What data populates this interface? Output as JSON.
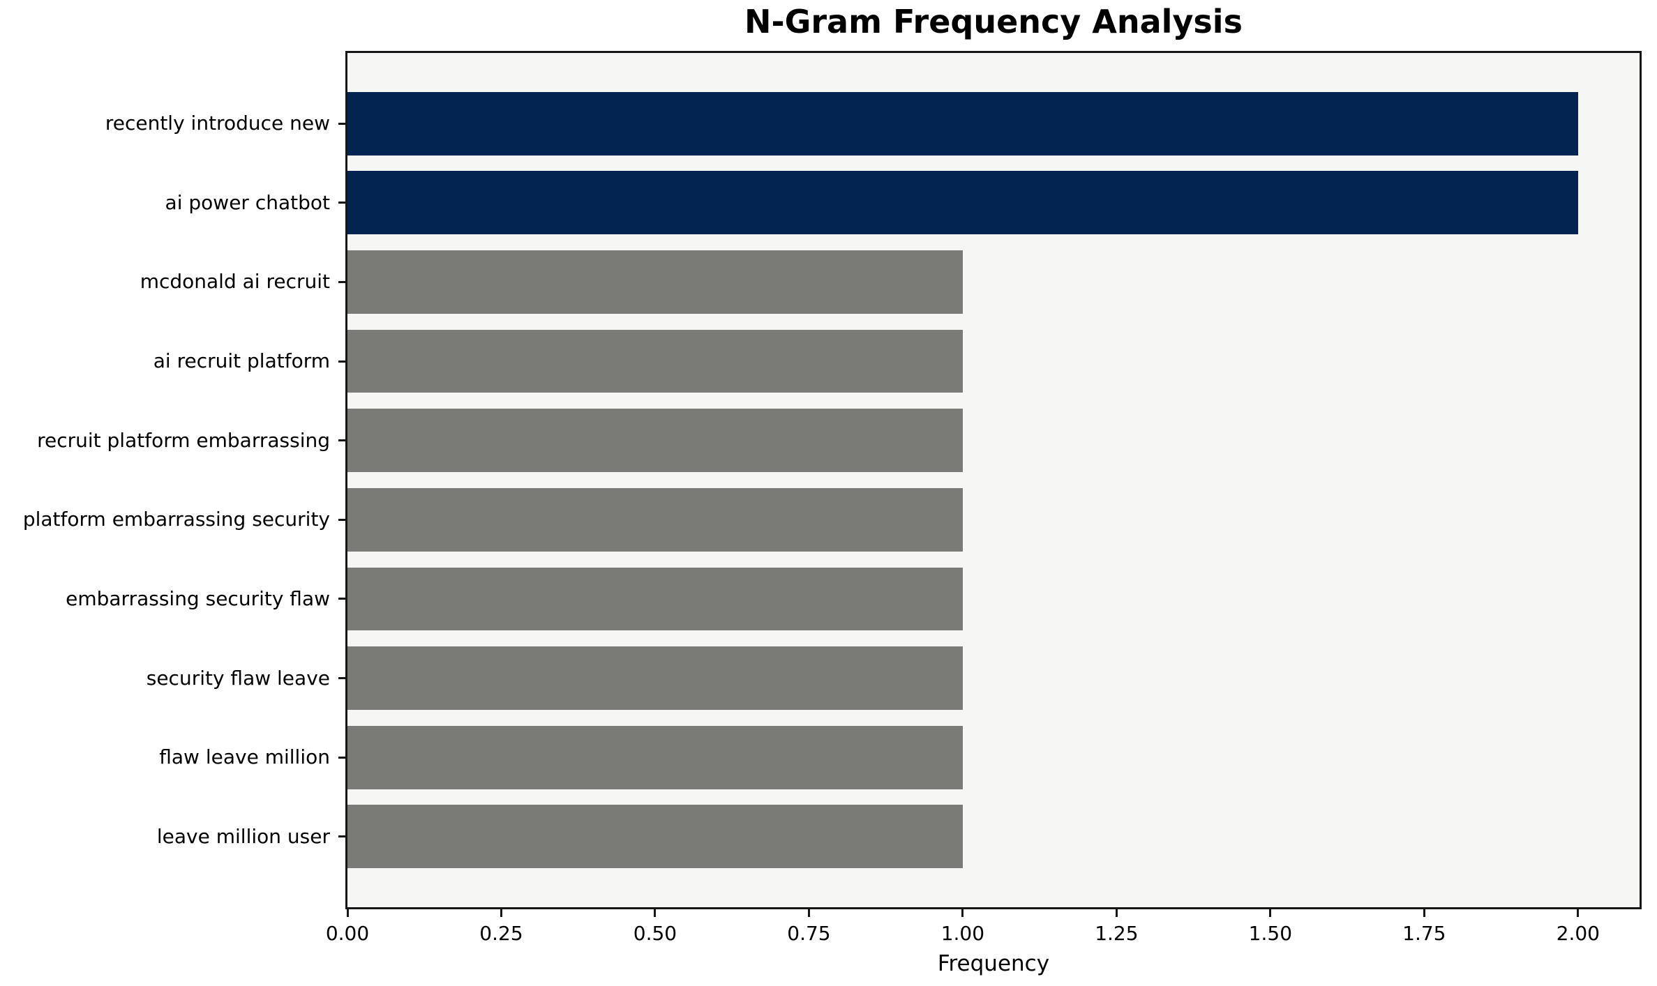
{
  "chart_data": {
    "type": "bar",
    "orientation": "horizontal",
    "title": "N-Gram Frequency Analysis",
    "xlabel": "Frequency",
    "ylabel": "",
    "categories": [
      "recently introduce new",
      "ai power chatbot",
      "mcdonald ai recruit",
      "ai recruit platform",
      "recruit platform embarrassing",
      "platform embarrassing security",
      "embarrassing security flaw",
      "security flaw leave",
      "flaw leave million",
      "leave million user"
    ],
    "values": [
      2,
      2,
      1,
      1,
      1,
      1,
      1,
      1,
      1,
      1
    ],
    "bar_colors": [
      "#032350",
      "#032350",
      "#7a7a76",
      "#7a7a76",
      "#7a7a76",
      "#7a7a76",
      "#7a7a76",
      "#7a7a76",
      "#7a7a76",
      "#7a7a76"
    ],
    "xlim": [
      0,
      2.1
    ],
    "x_ticks": [
      {
        "value": 0.0,
        "label": "0.00"
      },
      {
        "value": 0.25,
        "label": "0.25"
      },
      {
        "value": 0.5,
        "label": "0.50"
      },
      {
        "value": 0.75,
        "label": "0.75"
      },
      {
        "value": 1.0,
        "label": "1.00"
      },
      {
        "value": 1.25,
        "label": "1.25"
      },
      {
        "value": 1.5,
        "label": "1.50"
      },
      {
        "value": 1.75,
        "label": "1.75"
      },
      {
        "value": 2.0,
        "label": "2.00"
      }
    ],
    "bar_height_fraction": 0.8,
    "grid": false,
    "legend": false,
    "colors": {
      "highlight": "#032350",
      "muted": "#7a7a76",
      "plot_background": "#f6f6f4",
      "figure_background": "#ffffff",
      "spine": "#161616",
      "text": "#000000"
    }
  }
}
